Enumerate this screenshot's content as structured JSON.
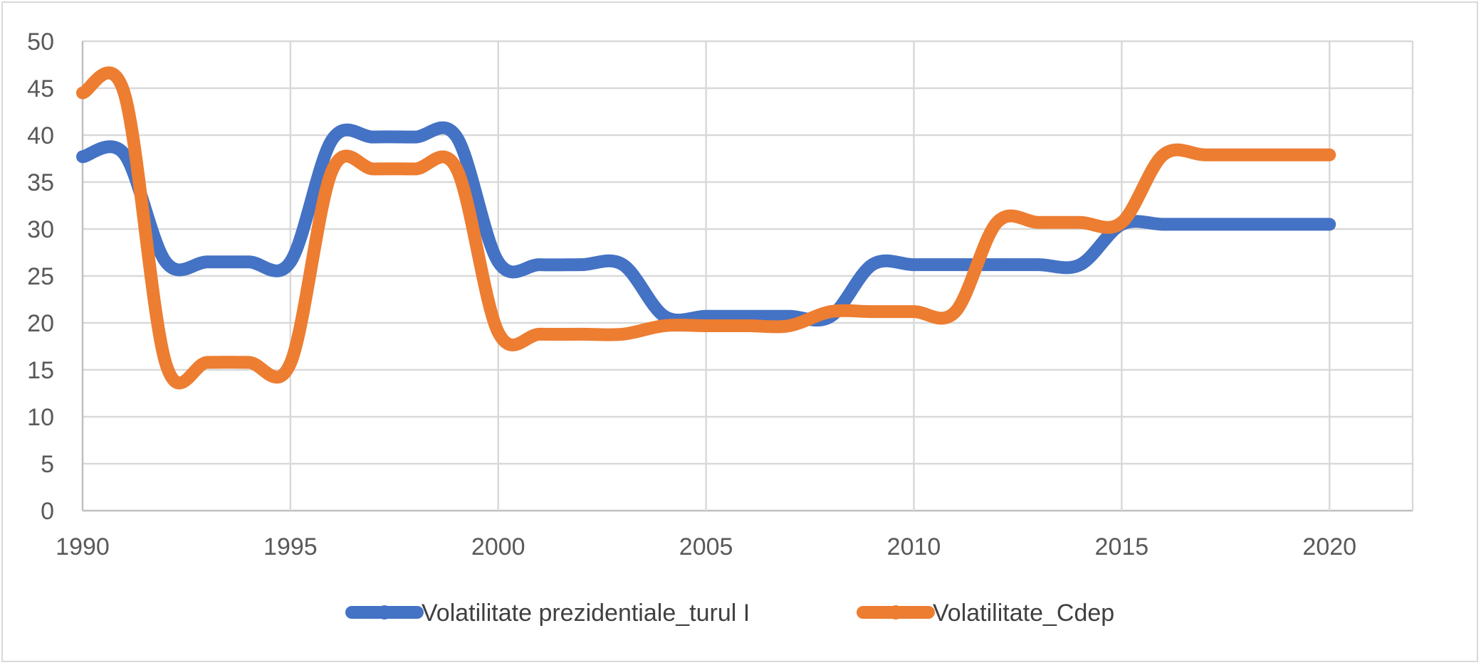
{
  "chart_data": {
    "type": "line",
    "title": "",
    "xlabel": "",
    "ylabel": "",
    "xlim": [
      1990,
      2022
    ],
    "ylim": [
      0,
      50
    ],
    "x_ticks": [
      "1990",
      "1995",
      "2000",
      "2005",
      "2010",
      "2015",
      "2020"
    ],
    "y_ticks": [
      "0",
      "5",
      "10",
      "15",
      "20",
      "25",
      "30",
      "35",
      "40",
      "45",
      "50"
    ],
    "grid": true,
    "legend_position": "bottom",
    "smooth": true,
    "x": [
      1990,
      1991,
      1992,
      1993,
      1994,
      1995,
      1996,
      1997,
      1998,
      1999,
      2000,
      2001,
      2002,
      2003,
      2004,
      2005,
      2006,
      2007,
      2008,
      2009,
      2010,
      2011,
      2012,
      2013,
      2014,
      2015,
      2016,
      2017,
      2018,
      2019,
      2020
    ],
    "series": [
      {
        "name": "Volatilitate prezidentiale_turul I",
        "color": "#4472C4",
        "values": [
          37.7,
          38.0,
          26.5,
          26.5,
          26.5,
          26.5,
          39.5,
          39.8,
          39.8,
          39.8,
          26.5,
          26.2,
          26.2,
          26.2,
          20.7,
          20.7,
          20.7,
          20.7,
          20.7,
          26.2,
          26.2,
          26.2,
          26.2,
          26.2,
          26.2,
          30.5,
          30.5,
          30.5,
          30.5,
          30.5,
          30.5
        ]
      },
      {
        "name": "Volatilitate_Cdep",
        "color": "#ED7D31",
        "values": [
          44.5,
          44.5,
          15.7,
          15.8,
          15.8,
          15.7,
          36.2,
          36.4,
          36.4,
          36.4,
          19.0,
          18.8,
          18.8,
          18.8,
          19.7,
          19.7,
          19.7,
          19.7,
          21.2,
          21.2,
          21.2,
          21.2,
          30.7,
          30.7,
          30.7,
          30.7,
          37.9,
          37.9,
          37.9,
          37.9,
          37.9
        ]
      }
    ]
  }
}
